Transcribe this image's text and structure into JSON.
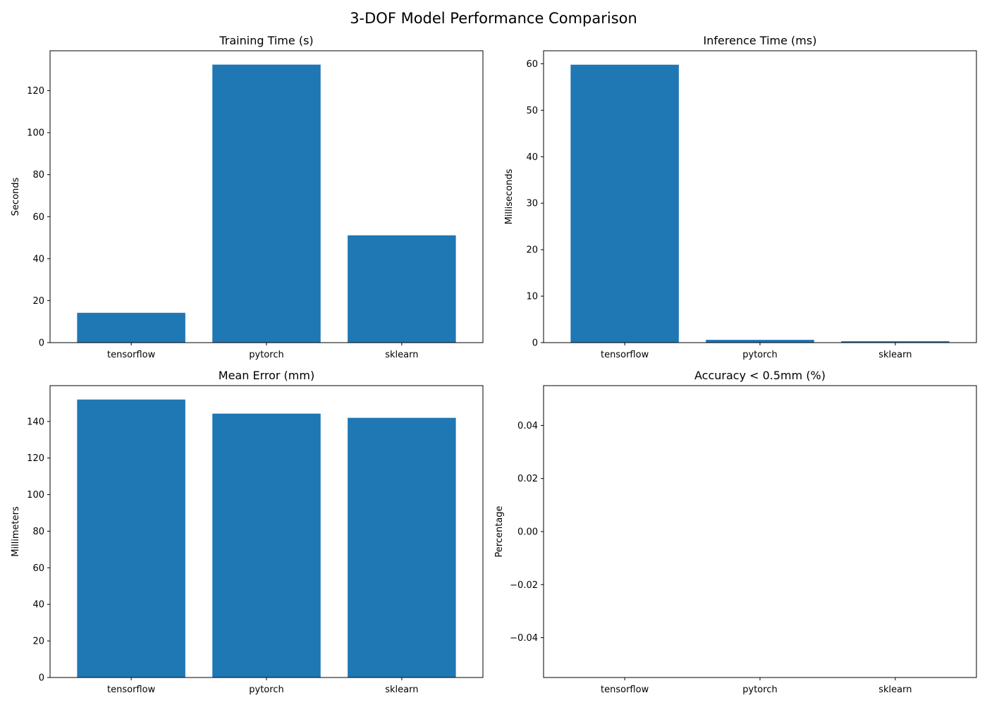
{
  "figure": {
    "title": "3-DOF Model Performance Comparison",
    "bar_color": "#1f77b4"
  },
  "chart_data": [
    {
      "type": "bar",
      "title": "Training Time (s)",
      "xlabel": "",
      "ylabel": "Seconds",
      "categories": [
        "tensorflow",
        "pytorch",
        "sklearn"
      ],
      "values": [
        14.2,
        132.4,
        51.1
      ],
      "ylim": [
        0,
        139
      ],
      "yticks": [
        0,
        20,
        40,
        60,
        80,
        100,
        120
      ],
      "ytick_labels": [
        "0",
        "20",
        "40",
        "60",
        "80",
        "100",
        "120"
      ],
      "grid": false
    },
    {
      "type": "bar",
      "title": "Inference Time (ms)",
      "xlabel": "",
      "ylabel": "Milliseconds",
      "categories": [
        "tensorflow",
        "pytorch",
        "sklearn"
      ],
      "values": [
        59.8,
        0.6,
        0.3
      ],
      "ylim": [
        0,
        62.8
      ],
      "yticks": [
        0,
        10,
        20,
        30,
        40,
        50,
        60
      ],
      "ytick_labels": [
        "0",
        "10",
        "20",
        "30",
        "40",
        "50",
        "60"
      ],
      "grid": false
    },
    {
      "type": "bar",
      "title": "Mean Error (mm)",
      "xlabel": "",
      "ylabel": "Millimeters",
      "categories": [
        "tensorflow",
        "pytorch",
        "sklearn"
      ],
      "values": [
        152.0,
        144.3,
        142.0
      ],
      "ylim": [
        0,
        159.6
      ],
      "yticks": [
        0,
        20,
        40,
        60,
        80,
        100,
        120,
        140
      ],
      "ytick_labels": [
        "0",
        "20",
        "40",
        "60",
        "80",
        "100",
        "120",
        "140"
      ],
      "grid": false
    },
    {
      "type": "bar",
      "title": "Accuracy < 0.5mm (%)",
      "xlabel": "",
      "ylabel": "Percentage",
      "categories": [
        "tensorflow",
        "pytorch",
        "sklearn"
      ],
      "values": [
        0,
        0,
        0
      ],
      "ylim": [
        -0.055,
        0.055
      ],
      "yticks": [
        -0.04,
        -0.02,
        0.0,
        0.02,
        0.04
      ],
      "ytick_labels": [
        "−0.04",
        "−0.02",
        "0.00",
        "0.02",
        "0.04"
      ],
      "grid": false
    }
  ]
}
